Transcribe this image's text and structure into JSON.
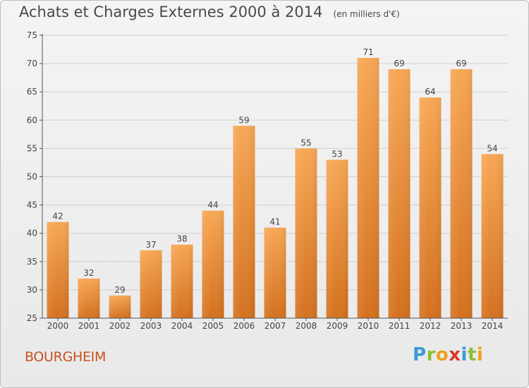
{
  "header": {
    "title": "Achats et Charges Externes 2000 à 2014",
    "subtitle": "(en milliers d'€)"
  },
  "footer": {
    "commune": "BOURGHEIM",
    "logo_text": "Proxiti"
  },
  "colors": {
    "bar_top": "#f7a755",
    "bar_bottom": "#d4711f",
    "axis": "#555555",
    "grid": "#cfcfcf",
    "commune_text": "#c8521f"
  },
  "chart_data": {
    "type": "bar",
    "title": "Achats et Charges Externes 2000 à 2014",
    "subtitle": "(en milliers d'€)",
    "categories": [
      "2000",
      "2001",
      "2002",
      "2003",
      "2004",
      "2005",
      "2006",
      "2007",
      "2008",
      "2009",
      "2010",
      "2011",
      "2012",
      "2013",
      "2014"
    ],
    "values": [
      42,
      32,
      29,
      37,
      38,
      44,
      59,
      41,
      55,
      53,
      71,
      69,
      64,
      69,
      54
    ],
    "ylim": [
      25,
      75
    ],
    "yticks": [
      25,
      30,
      35,
      40,
      45,
      50,
      55,
      60,
      65,
      70,
      75
    ],
    "grid": true,
    "data_labels": true
  }
}
